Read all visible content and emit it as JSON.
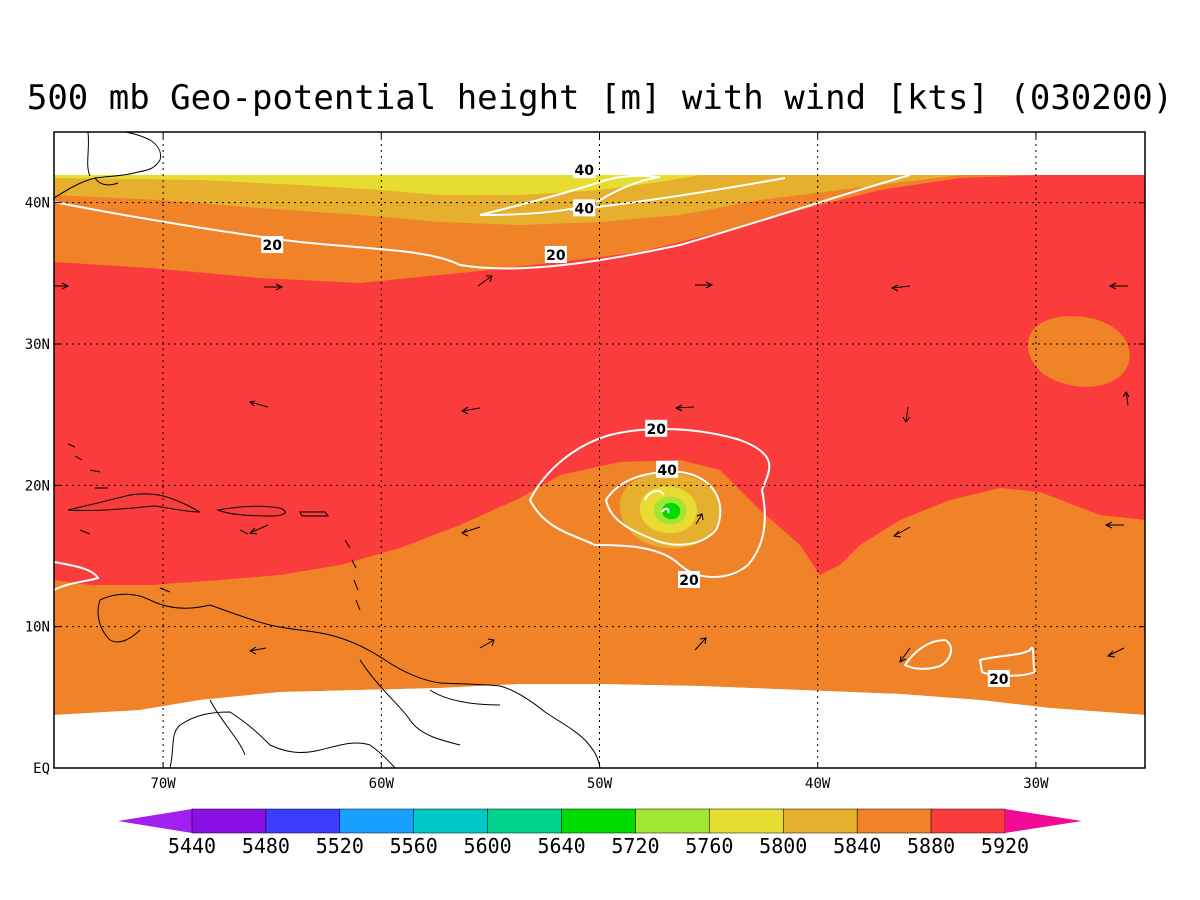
{
  "title": "500 mb Geo-potential height [m] with wind [kts] (030200)",
  "map": {
    "lon_labels": [
      {
        "lon": -70,
        "text": "70W"
      },
      {
        "lon": -60,
        "text": "60W"
      },
      {
        "lon": -50,
        "text": "50W"
      },
      {
        "lon": -40,
        "text": "40W"
      },
      {
        "lon": -30,
        "text": "30W"
      }
    ],
    "lat_labels": [
      {
        "lat": 40,
        "text": "40N"
      },
      {
        "lat": 30,
        "text": "30N"
      },
      {
        "lat": 20,
        "text": "20N"
      },
      {
        "lat": 10,
        "text": "10N"
      },
      {
        "lat": 0,
        "text": "EQ"
      }
    ],
    "extent": {
      "lon": [
        -75,
        -25
      ],
      "lat": [
        0,
        45
      ]
    },
    "wind_contour_labels": [
      {
        "lon": -65,
        "lat": 37,
        "text": "20"
      },
      {
        "lon": -52,
        "lat": 36.3,
        "text": "20"
      },
      {
        "lon": -47.4,
        "lat": 24,
        "text": "20"
      },
      {
        "lon": -45.9,
        "lat": 13.3,
        "text": "20"
      },
      {
        "lon": -31.7,
        "lat": 6.3,
        "text": "20"
      },
      {
        "lon": -50.7,
        "lat": 42.3,
        "text": "40"
      },
      {
        "lon": -50.7,
        "lat": 39.6,
        "text": "40"
      },
      {
        "lon": -46.9,
        "lat": 21.1,
        "text": "40"
      }
    ]
  },
  "colorbar": {
    "labels": [
      "5440",
      "5480",
      "5520",
      "5560",
      "5600",
      "5640",
      "5720",
      "5760",
      "5800",
      "5840",
      "5880",
      "5920"
    ],
    "colors": [
      "#a020f0",
      "#8a10e6",
      "#3c3cff",
      "#1aa0ff",
      "#00c8c8",
      "#00d28c",
      "#00dc00",
      "#a0e632",
      "#e6dc32",
      "#e6af2d",
      "#f08228",
      "#fa3c3c",
      "#f00a96"
    ]
  },
  "colors": {
    "ocean_red": "#fa3c3c",
    "orange": "#f08228",
    "dark_yellow": "#e6af2d",
    "yellow": "#e6dc32",
    "contour": "#ffffff",
    "coast": "#000000"
  }
}
